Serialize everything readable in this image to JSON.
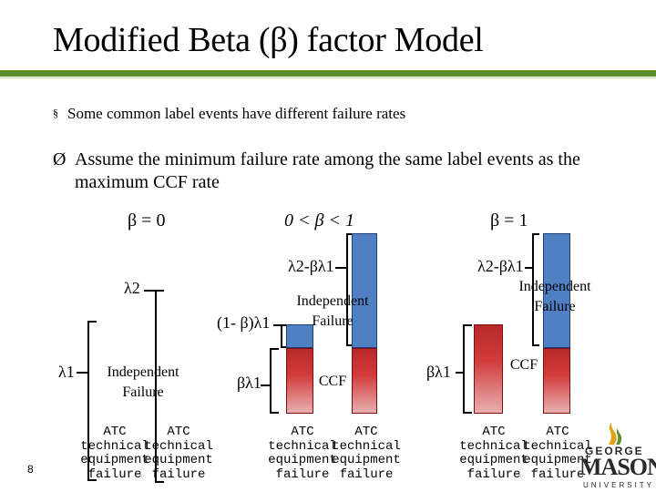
{
  "slide": {
    "title": "Modified Beta (β) factor Model",
    "bullet1": "Some common label events have different failure rates",
    "bullet1_marker": "§",
    "bullet2_marker": "Ø",
    "bullet2": "Assume the minimum failure rate among the same label events as the maximum CCF rate",
    "page_number": "8",
    "colors": {
      "blue_bar": "#4f80c4",
      "red_bar": "#c83232",
      "accent_green": "#5f8f2c"
    }
  },
  "panels": [
    {
      "condition": "β = 0",
      "lambda2_label": "λ2",
      "lambda1_label": "λ1",
      "independent_label": "Independent\nFailure",
      "captions": [
        "ATC\ntechnical\nequipment\nfailure",
        "ATC\ntechnical\nequipment\nfailure"
      ]
    },
    {
      "condition": "0 < β < 1",
      "top_label": "λ2-βλ1",
      "one_minus_label": "(1- β)λ1",
      "beta_label": "βλ1",
      "independent_label": "Independent\nFailure",
      "ccf_label": "CCF",
      "captions": [
        "ATC\ntechnical\nequipment\nfailure",
        "ATC\ntechnical\nequipment\nfailure"
      ]
    },
    {
      "condition": "β = 1",
      "top_label": "λ2-βλ1",
      "beta_label": "βλ1",
      "independent_label": "Independent\nFailure",
      "ccf_label": "CCF",
      "captions": [
        "ATC\ntechnical\nequipment\nfailure",
        "ATC\ntechnical\nequipment\nfailure"
      ]
    }
  ],
  "logo": {
    "line1": "GEORGE",
    "line2": "MASON",
    "line3": "UNIVERSITY"
  }
}
